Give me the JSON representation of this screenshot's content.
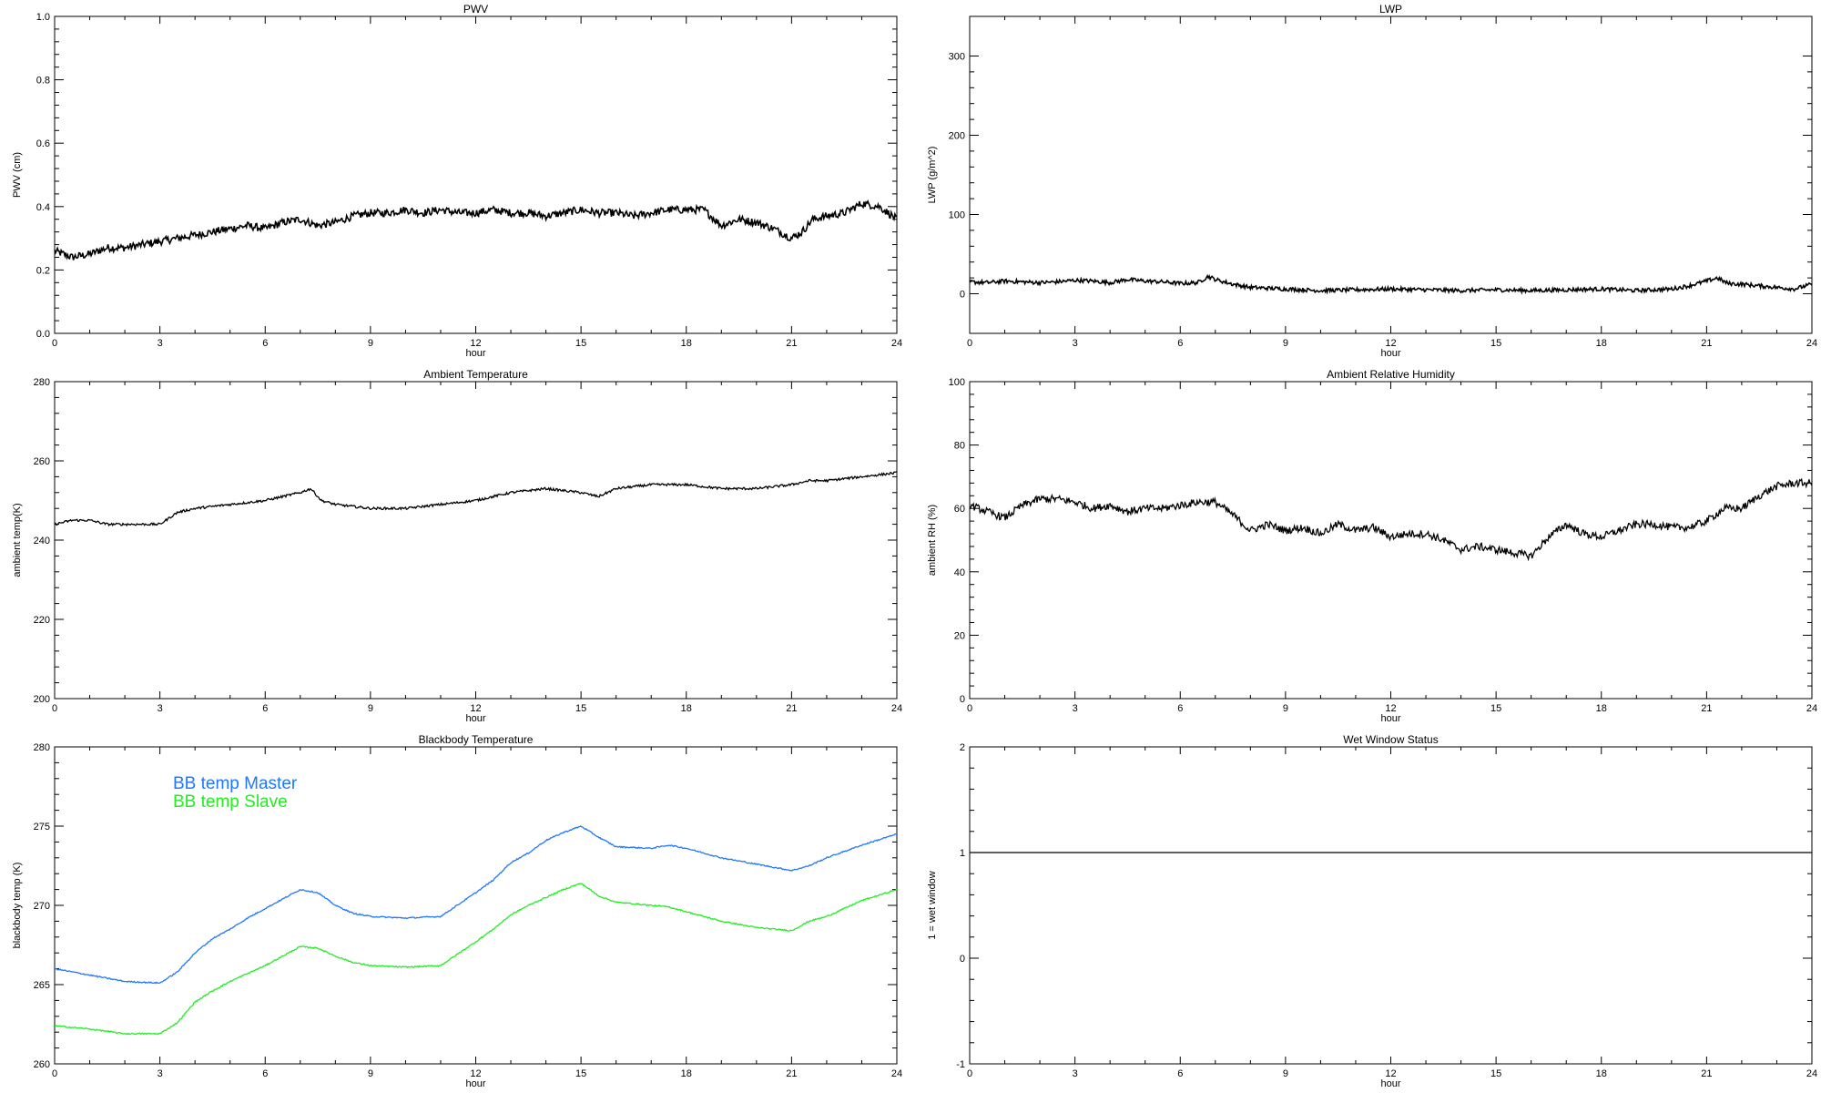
{
  "chart_data": [
    {
      "type": "line",
      "title": "PWV",
      "xlabel": "hour",
      "ylabel": "PWV (cm)",
      "xlim": [
        0,
        24
      ],
      "ylim": [
        0.0,
        1.0
      ],
      "xticks": [
        "0",
        "3",
        "6",
        "9",
        "12",
        "15",
        "18",
        "21",
        "24"
      ],
      "yticks": [
        "0.0",
        "0.2",
        "0.4",
        "0.6",
        "0.8",
        "1.0"
      ],
      "noise": 0.012,
      "series": [
        {
          "color": "#000000",
          "x": [
            0,
            0.5,
            1,
            1.5,
            2,
            2.5,
            3,
            3.5,
            4,
            4.5,
            5,
            5.5,
            6,
            6.5,
            7,
            7.5,
            8,
            8.5,
            9,
            9.5,
            10,
            10.5,
            11,
            11.5,
            12,
            12.5,
            13,
            13.5,
            14,
            14.5,
            15,
            15.5,
            16,
            16.5,
            17,
            17.5,
            18,
            18.5,
            19,
            19.5,
            20,
            20.5,
            21,
            21.3,
            21.6,
            22,
            22.5,
            23,
            23.5,
            24
          ],
          "values": [
            0.26,
            0.24,
            0.25,
            0.27,
            0.27,
            0.28,
            0.29,
            0.3,
            0.31,
            0.32,
            0.33,
            0.34,
            0.33,
            0.35,
            0.36,
            0.34,
            0.35,
            0.37,
            0.38,
            0.38,
            0.39,
            0.38,
            0.39,
            0.38,
            0.38,
            0.39,
            0.38,
            0.38,
            0.37,
            0.38,
            0.39,
            0.38,
            0.38,
            0.37,
            0.38,
            0.39,
            0.39,
            0.39,
            0.34,
            0.36,
            0.35,
            0.33,
            0.3,
            0.32,
            0.36,
            0.37,
            0.38,
            0.41,
            0.4,
            0.36
          ]
        }
      ]
    },
    {
      "type": "line",
      "title": "LWP",
      "xlabel": "hour",
      "ylabel": "LWP (g/m^2)",
      "xlim": [
        0,
        24
      ],
      "ylim": [
        -50,
        350
      ],
      "xticks": [
        "0",
        "3",
        "6",
        "9",
        "12",
        "15",
        "18",
        "21",
        "24"
      ],
      "yticks": [
        "0",
        "100",
        "200",
        "300"
      ],
      "ytick_values": [
        0,
        100,
        200,
        300
      ],
      "noise": 2.5,
      "series": [
        {
          "color": "#000000",
          "x": [
            0,
            0.5,
            1,
            1.5,
            2,
            2.5,
            3,
            3.5,
            4,
            4.5,
            5,
            5.5,
            6,
            6.5,
            6.8,
            7,
            7.5,
            8,
            9,
            10,
            11,
            12,
            13,
            14,
            15,
            16,
            17,
            18,
            19,
            20,
            20.5,
            21,
            21.3,
            21.6,
            22,
            22.5,
            23,
            23.5,
            24
          ],
          "values": [
            15,
            14,
            16,
            15,
            14,
            15,
            17,
            16,
            14,
            18,
            16,
            15,
            13,
            14,
            22,
            18,
            12,
            8,
            6,
            4,
            5,
            6,
            5,
            4,
            5,
            4,
            5,
            6,
            4,
            6,
            10,
            16,
            20,
            13,
            12,
            10,
            8,
            6,
            12
          ]
        }
      ]
    },
    {
      "type": "line",
      "title": "Ambient Temperature",
      "xlabel": "hour",
      "ylabel": "ambient temp(K)",
      "xlim": [
        0,
        24
      ],
      "ylim": [
        200,
        280
      ],
      "xticks": [
        "0",
        "3",
        "6",
        "9",
        "12",
        "15",
        "18",
        "21",
        "24"
      ],
      "yticks": [
        "200",
        "220",
        "240",
        "260",
        "280"
      ],
      "noise": 0.3,
      "series": [
        {
          "color": "#000000",
          "x": [
            0,
            0.5,
            1,
            1.5,
            2,
            2.5,
            3,
            3.5,
            4,
            5,
            6,
            6.5,
            7,
            7.3,
            7.6,
            8,
            9,
            10,
            11,
            12,
            13,
            14,
            15,
            15.5,
            16,
            17,
            18,
            19,
            20,
            21,
            21.5,
            22,
            23,
            24
          ],
          "values": [
            244,
            245,
            245,
            244,
            244,
            244,
            244,
            247,
            248,
            249,
            250,
            251,
            252,
            253,
            250,
            249,
            248,
            248,
            249,
            250,
            252,
            253,
            252,
            251,
            253,
            254,
            254,
            253,
            253,
            254,
            255,
            255,
            256,
            257
          ]
        }
      ]
    },
    {
      "type": "line",
      "title": "Ambient Relative Humidity",
      "xlabel": "hour",
      "ylabel": "ambient RH (%)",
      "xlim": [
        0,
        24
      ],
      "ylim": [
        0,
        100
      ],
      "xticks": [
        "0",
        "3",
        "6",
        "9",
        "12",
        "15",
        "18",
        "21",
        "24"
      ],
      "yticks": [
        "0",
        "20",
        "40",
        "60",
        "80",
        "100"
      ],
      "noise": 1.2,
      "series": [
        {
          "color": "#000000",
          "x": [
            0,
            0.5,
            1,
            1.5,
            2,
            2.5,
            3,
            3.5,
            4,
            4.5,
            5,
            5.5,
            6,
            6.5,
            7,
            7.5,
            8,
            8.5,
            9,
            9.5,
            10,
            10.5,
            11,
            11.5,
            12,
            12.5,
            13,
            13.5,
            14,
            14.5,
            15,
            15.5,
            16,
            16.5,
            17,
            17.5,
            18,
            18.5,
            19,
            19.5,
            20,
            20.5,
            21,
            21.5,
            22,
            22.5,
            23,
            23.5,
            24
          ],
          "values": [
            61,
            59,
            57,
            61,
            63,
            63,
            62,
            60,
            61,
            59,
            60,
            60,
            61,
            62,
            62,
            58,
            53,
            55,
            53,
            54,
            52,
            55,
            53,
            54,
            51,
            52,
            52,
            50,
            47,
            48,
            47,
            46,
            45,
            51,
            55,
            52,
            51,
            53,
            55,
            55,
            54,
            54,
            56,
            60,
            60,
            64,
            67,
            68,
            68
          ]
        }
      ]
    },
    {
      "type": "line",
      "title": "Blackbody Temperature",
      "xlabel": "hour",
      "ylabel": "blackbody temp (K)",
      "xlim": [
        0,
        24
      ],
      "ylim": [
        260,
        280
      ],
      "xticks": [
        "0",
        "3",
        "6",
        "9",
        "12",
        "15",
        "18",
        "21",
        "24"
      ],
      "yticks": [
        "260",
        "265",
        "270",
        "275",
        "280"
      ],
      "noise": 0.04,
      "legend": "top-left",
      "series": [
        {
          "name": "BB temp Master",
          "color": "#1f78ff",
          "x": [
            0,
            1,
            2,
            3,
            3.5,
            4,
            4.5,
            5,
            5.5,
            6,
            6.5,
            7,
            7.5,
            8,
            8.5,
            9,
            10,
            11,
            12,
            12.5,
            13,
            13.5,
            14,
            14.5,
            15,
            15.5,
            16,
            17,
            17.5,
            18,
            19,
            20,
            21,
            21.5,
            22,
            23,
            24
          ],
          "values": [
            266.0,
            265.6,
            265.2,
            265.1,
            265.8,
            267.0,
            267.9,
            268.5,
            269.2,
            269.8,
            270.4,
            271.0,
            270.8,
            270.0,
            269.5,
            269.3,
            269.2,
            269.3,
            270.8,
            271.6,
            272.7,
            273.3,
            274.1,
            274.6,
            275.0,
            274.3,
            273.7,
            273.6,
            273.8,
            273.6,
            273.0,
            272.6,
            272.2,
            272.5,
            273.0,
            273.8,
            274.5
          ]
        },
        {
          "name": "BB temp Slave",
          "color": "#22ee22",
          "x": [
            0,
            1,
            2,
            3,
            3.5,
            4,
            4.5,
            5,
            5.5,
            6,
            6.5,
            7,
            7.5,
            8,
            8.5,
            9,
            10,
            11,
            12,
            12.5,
            13,
            13.5,
            14,
            14.5,
            15,
            15.5,
            16,
            17,
            17.5,
            18,
            19,
            20,
            21,
            21.5,
            22,
            23,
            24
          ],
          "values": [
            262.4,
            262.2,
            261.9,
            261.9,
            262.6,
            263.9,
            264.6,
            265.2,
            265.7,
            266.2,
            266.8,
            267.4,
            267.3,
            266.8,
            266.4,
            266.2,
            266.1,
            266.2,
            267.7,
            268.5,
            269.4,
            270.0,
            270.5,
            271.0,
            271.4,
            270.6,
            270.2,
            270.0,
            269.9,
            269.6,
            269.0,
            268.6,
            268.4,
            269.0,
            269.3,
            270.3,
            271.0
          ]
        }
      ]
    },
    {
      "type": "line",
      "title": "Wet Window Status",
      "xlabel": "hour",
      "ylabel": "1 = wet window",
      "xlim": [
        0,
        24
      ],
      "ylim": [
        -1,
        2
      ],
      "xticks": [
        "0",
        "3",
        "6",
        "9",
        "12",
        "15",
        "18",
        "21",
        "24"
      ],
      "yticks": [
        "-1",
        "0",
        "1",
        "2"
      ],
      "noise": 0,
      "series": [
        {
          "color": "#000000",
          "x": [
            0,
            24
          ],
          "values": [
            1,
            1
          ]
        }
      ]
    }
  ]
}
